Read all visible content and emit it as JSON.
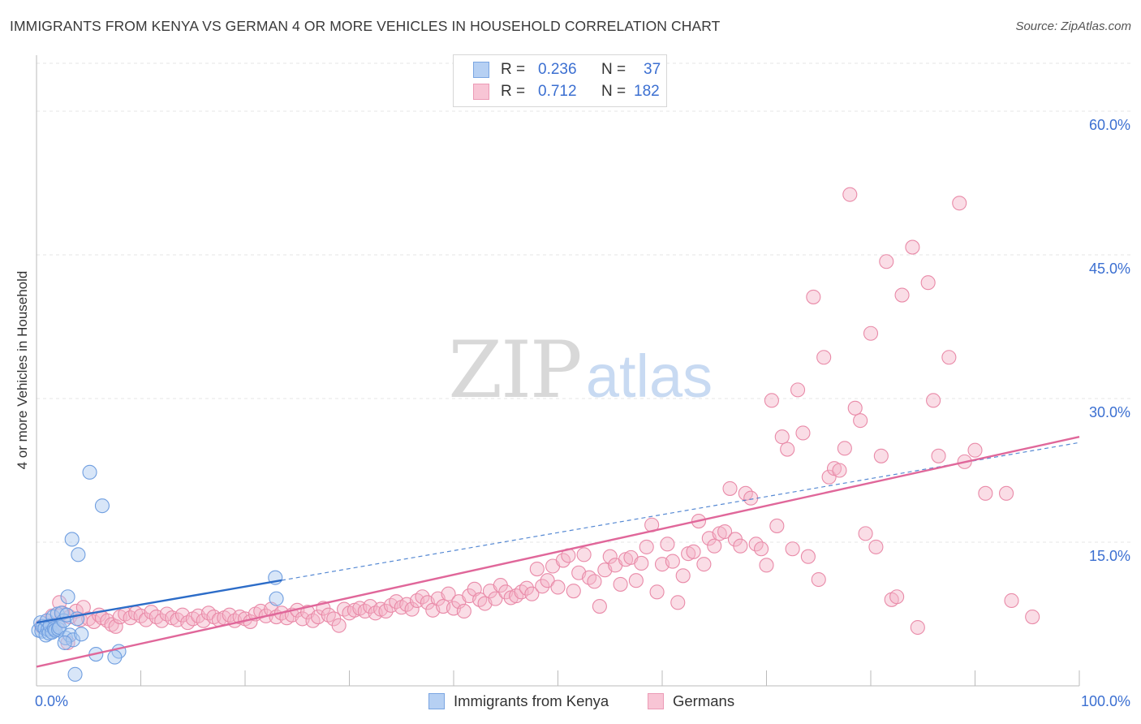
{
  "title": "IMMIGRANTS FROM KENYA VS GERMAN 4 OR MORE VEHICLES IN HOUSEHOLD CORRELATION CHART",
  "source": "Source: ZipAtlas.com",
  "watermark": {
    "zip": "ZIP",
    "atlas": "atlas"
  },
  "colors": {
    "blue": "#a9c8f0",
    "blue_stroke": "#6f9ee0",
    "blue_line": "#2c6cc8",
    "pink": "#f5b3c8",
    "pink_stroke": "#e98aa8",
    "pink_line": "#e0679a",
    "tick_text": "#3b6fd1",
    "grid": "#e4e4e4"
  },
  "legend_top": [
    {
      "r_label": "R =",
      "r_value": "0.236",
      "n_label": "N =",
      "n_value": "37",
      "series": "blue"
    },
    {
      "r_label": "R =",
      "r_value": "0.712",
      "n_label": "N =",
      "n_value": "182",
      "series": "pink"
    }
  ],
  "legend_bottom": [
    {
      "label": "Immigrants from Kenya",
      "series": "blue"
    },
    {
      "label": "Germans",
      "series": "pink"
    }
  ],
  "chart_data": {
    "type": "scatter",
    "title": "IMMIGRANTS FROM KENYA VS GERMAN 4 OR MORE VEHICLES IN HOUSEHOLD CORRELATION CHART",
    "xlabel": "",
    "ylabel": "4 or more Vehicles in Household",
    "xlim": [
      0,
      100
    ],
    "ylim": [
      0,
      65
    ],
    "x_tick_labels": [
      {
        "x": 0,
        "label": "0.0%"
      },
      {
        "x": 100,
        "label": "100.0%"
      }
    ],
    "y_tick_labels": [
      {
        "y": 15,
        "label": "15.0%"
      },
      {
        "y": 30,
        "label": "30.0%"
      },
      {
        "y": 45,
        "label": "45.0%"
      },
      {
        "y": 60,
        "label": "60.0%"
      }
    ],
    "grid": true,
    "series": [
      {
        "name": "Immigrants from Kenya",
        "color": "blue",
        "points": [
          [
            0.2,
            5.8
          ],
          [
            0.4,
            6.6
          ],
          [
            0.5,
            5.7
          ],
          [
            0.6,
            6.2
          ],
          [
            0.8,
            6.0
          ],
          [
            0.9,
            5.3
          ],
          [
            1.0,
            6.8
          ],
          [
            1.1,
            5.9
          ],
          [
            1.2,
            5.5
          ],
          [
            1.3,
            6.3
          ],
          [
            1.5,
            5.6
          ],
          [
            1.6,
            7.2
          ],
          [
            1.7,
            6.0
          ],
          [
            1.8,
            5.8
          ],
          [
            2.0,
            7.5
          ],
          [
            2.1,
            5.9
          ],
          [
            2.2,
            6.1
          ],
          [
            2.4,
            7.6
          ],
          [
            2.6,
            6.8
          ],
          [
            2.8,
            5.0
          ],
          [
            2.9,
            7.4
          ],
          [
            3.0,
            9.3
          ],
          [
            3.2,
            5.3
          ],
          [
            3.5,
            4.8
          ],
          [
            3.9,
            7.0
          ],
          [
            4.3,
            5.4
          ],
          [
            2.7,
            4.5
          ],
          [
            3.4,
            15.3
          ],
          [
            4.0,
            13.7
          ],
          [
            5.1,
            22.3
          ],
          [
            6.3,
            18.8
          ],
          [
            5.7,
            3.3
          ],
          [
            7.9,
            3.6
          ],
          [
            7.5,
            3.0
          ],
          [
            3.7,
            1.2
          ],
          [
            22.9,
            11.3
          ],
          [
            23.0,
            9.1
          ]
        ],
        "trend": {
          "x0": 0,
          "y0": 6.6,
          "x1": 100,
          "y1": 25.4,
          "solid_until": 23.5
        }
      },
      {
        "name": "Germans",
        "color": "pink",
        "points": [
          [
            0.5,
            6.2
          ],
          [
            1.0,
            6.8
          ],
          [
            1.5,
            7.3
          ],
          [
            2.0,
            6.5
          ],
          [
            2.2,
            8.7
          ],
          [
            2.5,
            7.6
          ],
          [
            3.0,
            4.5
          ],
          [
            3.2,
            7.2
          ],
          [
            3.8,
            7.8
          ],
          [
            4.2,
            6.9
          ],
          [
            4.5,
            8.2
          ],
          [
            5.0,
            7.0
          ],
          [
            5.5,
            6.7
          ],
          [
            6.0,
            7.4
          ],
          [
            6.3,
            7.1
          ],
          [
            6.8,
            6.8
          ],
          [
            7.2,
            6.4
          ],
          [
            7.6,
            6.2
          ],
          [
            8.0,
            7.2
          ],
          [
            8.5,
            7.5
          ],
          [
            9.0,
            7.1
          ],
          [
            9.5,
            7.6
          ],
          [
            10.0,
            7.3
          ],
          [
            10.5,
            6.9
          ],
          [
            11.0,
            7.7
          ],
          [
            11.5,
            7.2
          ],
          [
            12.0,
            6.8
          ],
          [
            12.5,
            7.5
          ],
          [
            13.0,
            7.1
          ],
          [
            13.5,
            6.9
          ],
          [
            14.0,
            7.4
          ],
          [
            14.5,
            6.6
          ],
          [
            15.0,
            7.0
          ],
          [
            15.5,
            7.3
          ],
          [
            16.0,
            6.8
          ],
          [
            16.5,
            7.6
          ],
          [
            17.0,
            7.2
          ],
          [
            17.5,
            6.9
          ],
          [
            18.0,
            7.1
          ],
          [
            18.5,
            7.4
          ],
          [
            19.0,
            6.8
          ],
          [
            19.5,
            7.2
          ],
          [
            20.0,
            7.0
          ],
          [
            20.5,
            6.7
          ],
          [
            21.0,
            7.5
          ],
          [
            21.5,
            7.8
          ],
          [
            22.0,
            7.3
          ],
          [
            22.5,
            8.0
          ],
          [
            23.0,
            7.2
          ],
          [
            23.5,
            7.6
          ],
          [
            24.0,
            7.1
          ],
          [
            24.5,
            7.4
          ],
          [
            25.0,
            7.9
          ],
          [
            25.5,
            7.0
          ],
          [
            26.0,
            7.7
          ],
          [
            26.5,
            6.8
          ],
          [
            27.0,
            7.2
          ],
          [
            27.5,
            8.1
          ],
          [
            28.0,
            7.4
          ],
          [
            28.5,
            7.0
          ],
          [
            29.0,
            6.3
          ],
          [
            29.5,
            8.0
          ],
          [
            30.0,
            7.6
          ],
          [
            30.5,
            7.9
          ],
          [
            31.0,
            8.1
          ],
          [
            31.5,
            7.8
          ],
          [
            32.0,
            8.3
          ],
          [
            32.5,
            7.6
          ],
          [
            33.0,
            8.0
          ],
          [
            33.5,
            7.8
          ],
          [
            34.0,
            8.4
          ],
          [
            34.5,
            8.8
          ],
          [
            35.0,
            8.2
          ],
          [
            35.5,
            8.5
          ],
          [
            36.0,
            8.0
          ],
          [
            36.5,
            8.9
          ],
          [
            37.0,
            9.3
          ],
          [
            37.5,
            8.7
          ],
          [
            38.0,
            7.9
          ],
          [
            38.5,
            9.1
          ],
          [
            39.0,
            8.3
          ],
          [
            39.5,
            9.6
          ],
          [
            40.0,
            8.1
          ],
          [
            40.5,
            8.8
          ],
          [
            41.0,
            7.8
          ],
          [
            41.5,
            9.4
          ],
          [
            42.0,
            10.1
          ],
          [
            42.5,
            9.0
          ],
          [
            43.0,
            8.6
          ],
          [
            43.5,
            9.9
          ],
          [
            44.0,
            9.1
          ],
          [
            44.5,
            10.5
          ],
          [
            45.0,
            9.8
          ],
          [
            45.5,
            9.2
          ],
          [
            46.0,
            9.4
          ],
          [
            46.5,
            9.8
          ],
          [
            47.0,
            10.2
          ],
          [
            47.5,
            9.6
          ],
          [
            48.0,
            12.2
          ],
          [
            48.5,
            10.4
          ],
          [
            49.0,
            11.0
          ],
          [
            49.5,
            12.5
          ],
          [
            50.0,
            10.3
          ],
          [
            50.5,
            13.1
          ],
          [
            51.0,
            13.6
          ],
          [
            51.5,
            9.9
          ],
          [
            52.0,
            11.8
          ],
          [
            52.5,
            13.7
          ],
          [
            53.0,
            11.3
          ],
          [
            53.5,
            10.9
          ],
          [
            54.0,
            8.3
          ],
          [
            54.5,
            12.1
          ],
          [
            55.0,
            13.5
          ],
          [
            55.5,
            12.6
          ],
          [
            56.0,
            10.6
          ],
          [
            56.5,
            13.2
          ],
          [
            57.0,
            13.4
          ],
          [
            57.5,
            11.0
          ],
          [
            58.0,
            12.8
          ],
          [
            58.5,
            14.5
          ],
          [
            59.0,
            16.8
          ],
          [
            59.5,
            9.8
          ],
          [
            60.0,
            12.7
          ],
          [
            60.5,
            14.8
          ],
          [
            61.0,
            13.0
          ],
          [
            61.5,
            8.7
          ],
          [
            62.0,
            11.5
          ],
          [
            62.5,
            13.8
          ],
          [
            63.0,
            14.0
          ],
          [
            63.5,
            17.2
          ],
          [
            64.0,
            12.7
          ],
          [
            64.5,
            15.4
          ],
          [
            65.0,
            14.6
          ],
          [
            65.5,
            15.9
          ],
          [
            66.0,
            16.1
          ],
          [
            66.5,
            20.6
          ],
          [
            67.0,
            15.3
          ],
          [
            67.5,
            14.6
          ],
          [
            68.0,
            20.1
          ],
          [
            68.5,
            19.6
          ],
          [
            69.0,
            14.8
          ],
          [
            69.5,
            14.3
          ],
          [
            70.0,
            12.6
          ],
          [
            70.5,
            29.8
          ],
          [
            71.0,
            16.7
          ],
          [
            71.5,
            26.0
          ],
          [
            72.0,
            24.7
          ],
          [
            72.5,
            14.3
          ],
          [
            73.0,
            30.9
          ],
          [
            73.5,
            26.4
          ],
          [
            74.0,
            13.5
          ],
          [
            74.5,
            40.6
          ],
          [
            75.0,
            11.1
          ],
          [
            75.5,
            34.3
          ],
          [
            76.0,
            21.8
          ],
          [
            76.5,
            22.7
          ],
          [
            77.0,
            22.5
          ],
          [
            77.5,
            24.8
          ],
          [
            78.0,
            51.3
          ],
          [
            78.5,
            29.0
          ],
          [
            79.0,
            27.7
          ],
          [
            79.5,
            15.9
          ],
          [
            80.0,
            36.8
          ],
          [
            80.5,
            14.5
          ],
          [
            81.0,
            24.0
          ],
          [
            81.5,
            44.3
          ],
          [
            82.0,
            9.0
          ],
          [
            82.5,
            9.3
          ],
          [
            83.0,
            40.8
          ],
          [
            84.0,
            45.8
          ],
          [
            84.5,
            6.1
          ],
          [
            85.5,
            42.1
          ],
          [
            86.0,
            29.8
          ],
          [
            86.5,
            24.0
          ],
          [
            87.5,
            34.3
          ],
          [
            88.5,
            50.4
          ],
          [
            89.0,
            23.4
          ],
          [
            90.0,
            24.6
          ],
          [
            91.0,
            20.1
          ],
          [
            93.0,
            20.1
          ],
          [
            93.5,
            8.9
          ],
          [
            95.5,
            7.2
          ]
        ],
        "trend": {
          "x0": 0,
          "y0": 2.0,
          "x1": 100,
          "y1": 26.0
        }
      }
    ]
  }
}
